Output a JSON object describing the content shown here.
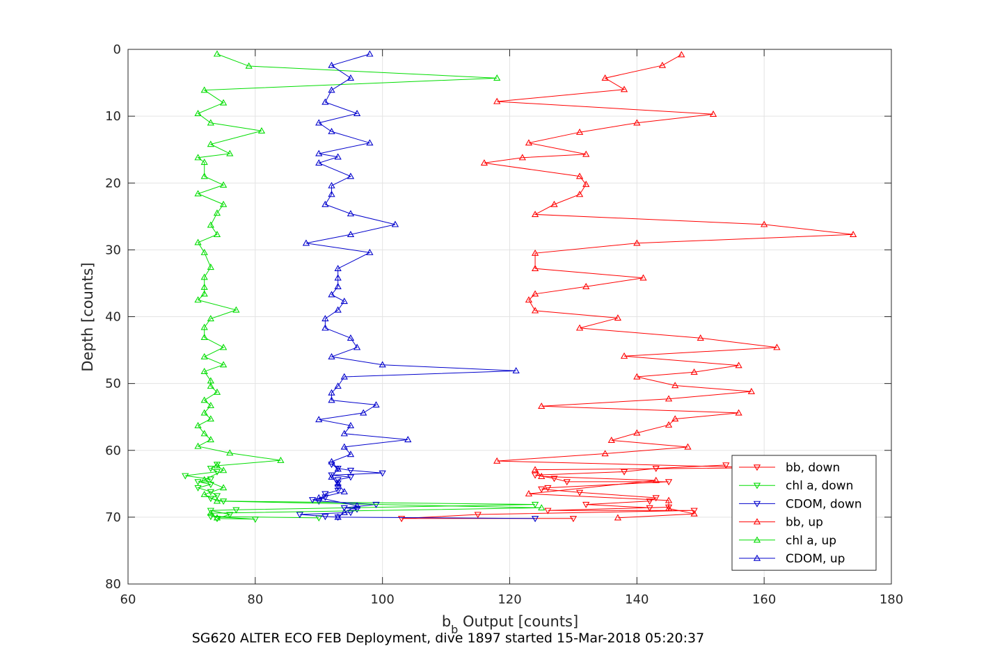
{
  "caption": "SG620 ALTER ECO FEB Deployment, dive 1897 started 15-Mar-2018 05:20:37",
  "chart_data": {
    "type": "line",
    "xlabel": "b_b Output [counts]",
    "xlabel_main": "b",
    "xlabel_sub": "b",
    "xlabel_rest": " Output [counts]",
    "ylabel": "Depth [counts]",
    "xlim": [
      60,
      180
    ],
    "ylim": [
      0,
      80
    ],
    "y_reversed": true,
    "x_ticks": [
      60,
      80,
      100,
      120,
      140,
      160,
      180
    ],
    "y_ticks": [
      0,
      10,
      20,
      30,
      40,
      50,
      60,
      70,
      80
    ],
    "grid": true,
    "legend_position": "bottom-right",
    "series": [
      {
        "name": "bb, down",
        "color": "#ff0000",
        "marker": "triangle-down",
        "points": [
          [
            154,
            62.2
          ],
          [
            143,
            62.7
          ],
          [
            138,
            63.2
          ],
          [
            124,
            63.7
          ],
          [
            127,
            64.2
          ],
          [
            129,
            64.7
          ],
          [
            145,
            64.7
          ],
          [
            126,
            65.6
          ],
          [
            125,
            65.8
          ],
          [
            131,
            66.3
          ],
          [
            143,
            67.1
          ],
          [
            142,
            67.6
          ],
          [
            132,
            68.1
          ],
          [
            142,
            68.6
          ],
          [
            145,
            68.5
          ],
          [
            126,
            69.0
          ],
          [
            149,
            69.0
          ],
          [
            115,
            69.6
          ],
          [
            103,
            70.2
          ],
          [
            130,
            70.2
          ]
        ]
      },
      {
        "name": "chl a, down",
        "color": "#00dd00",
        "marker": "triangle-down",
        "points": [
          [
            74,
            62.1
          ],
          [
            73,
            62.7
          ],
          [
            74,
            63.2
          ],
          [
            69,
            63.8
          ],
          [
            73,
            64.3
          ],
          [
            71,
            64.7
          ],
          [
            73,
            65.1
          ],
          [
            71,
            65.6
          ],
          [
            73,
            66.2
          ],
          [
            74,
            66.8
          ],
          [
            73,
            67.2
          ],
          [
            75,
            67.6
          ],
          [
            124,
            68.1
          ],
          [
            77,
            68.9
          ],
          [
            73,
            69.0
          ],
          [
            76,
            69.6
          ],
          [
            74,
            70.2
          ],
          [
            80,
            70.3
          ],
          [
            73,
            69.9
          ],
          [
            90,
            70.1
          ]
        ]
      },
      {
        "name": "CDOM, down",
        "color": "#0000cc",
        "marker": "triangle-down",
        "points": [
          [
            92,
            62.1
          ],
          [
            93,
            62.7
          ],
          [
            95,
            63.0
          ],
          [
            100,
            63.4
          ],
          [
            92,
            63.7
          ],
          [
            95,
            64.0
          ],
          [
            93,
            64.4
          ],
          [
            93,
            64.9
          ],
          [
            93,
            65.5
          ],
          [
            93,
            66.0
          ],
          [
            91,
            66.5
          ],
          [
            91,
            67.0
          ],
          [
            89,
            67.4
          ],
          [
            90,
            67.6
          ],
          [
            99,
            68.1
          ],
          [
            94,
            68.6
          ],
          [
            96,
            68.8
          ],
          [
            95,
            69.3
          ],
          [
            87,
            69.6
          ],
          [
            91,
            69.9
          ],
          [
            93,
            70.0
          ],
          [
            124,
            70.2
          ]
        ]
      },
      {
        "name": "bb, up",
        "color": "#ff0000",
        "marker": "triangle-up",
        "points": [
          [
            147,
            0.8
          ],
          [
            144,
            2.4
          ],
          [
            135,
            4.3
          ],
          [
            138,
            6.0
          ],
          [
            118,
            7.8
          ],
          [
            152,
            9.7
          ],
          [
            140,
            11.0
          ],
          [
            131,
            12.4
          ],
          [
            123,
            14.0
          ],
          [
            132,
            15.7
          ],
          [
            122,
            16.2
          ],
          [
            116,
            17.0
          ],
          [
            131,
            19.0
          ],
          [
            132,
            20.2
          ],
          [
            131,
            21.7
          ],
          [
            127,
            23.2
          ],
          [
            124,
            24.7
          ],
          [
            160,
            26.2
          ],
          [
            174,
            27.7
          ],
          [
            140,
            29.0
          ],
          [
            124,
            30.5
          ],
          [
            124,
            32.8
          ],
          [
            141,
            34.2
          ],
          [
            132,
            35.5
          ],
          [
            124,
            36.6
          ],
          [
            123,
            37.5
          ],
          [
            124,
            39.1
          ],
          [
            137,
            40.2
          ],
          [
            131,
            41.7
          ],
          [
            150,
            43.2
          ],
          [
            162,
            44.6
          ],
          [
            138,
            45.9
          ],
          [
            156,
            47.3
          ],
          [
            149,
            48.3
          ],
          [
            140,
            49.0
          ],
          [
            146,
            50.3
          ],
          [
            158,
            51.2
          ],
          [
            145,
            52.3
          ],
          [
            125,
            53.4
          ],
          [
            156,
            54.4
          ],
          [
            146,
            55.3
          ],
          [
            145,
            56.2
          ],
          [
            140,
            57.4
          ],
          [
            136,
            58.5
          ],
          [
            148,
            59.5
          ],
          [
            135,
            60.5
          ],
          [
            118,
            61.6
          ],
          [
            160,
            62.6
          ],
          [
            124,
            62.9
          ],
          [
            125,
            63.9
          ],
          [
            143,
            64.5
          ],
          [
            123,
            66.5
          ],
          [
            145,
            67.5
          ],
          [
            145,
            68.7
          ],
          [
            149,
            69.5
          ],
          [
            137,
            70.1
          ]
        ]
      },
      {
        "name": "chl a, up",
        "color": "#00dd00",
        "marker": "triangle-up",
        "points": [
          [
            74,
            0.7
          ],
          [
            79,
            2.5
          ],
          [
            118,
            4.3
          ],
          [
            72,
            6.1
          ],
          [
            75,
            8.0
          ],
          [
            71,
            9.6
          ],
          [
            73,
            11.0
          ],
          [
            81,
            12.2
          ],
          [
            73,
            14.2
          ],
          [
            76,
            15.6
          ],
          [
            71,
            16.2
          ],
          [
            72,
            16.9
          ],
          [
            72,
            19.0
          ],
          [
            75,
            20.3
          ],
          [
            71,
            21.6
          ],
          [
            75,
            23.2
          ],
          [
            74,
            24.5
          ],
          [
            73,
            26.3
          ],
          [
            74,
            27.7
          ],
          [
            71,
            28.9
          ],
          [
            72,
            30.4
          ],
          [
            73,
            32.6
          ],
          [
            72,
            34.1
          ],
          [
            72,
            35.6
          ],
          [
            72,
            36.6
          ],
          [
            71,
            37.5
          ],
          [
            77,
            39.0
          ],
          [
            73,
            40.3
          ],
          [
            72,
            41.6
          ],
          [
            72,
            43.1
          ],
          [
            75,
            44.6
          ],
          [
            72,
            46.0
          ],
          [
            75,
            47.2
          ],
          [
            72,
            48.2
          ],
          [
            73,
            49.6
          ],
          [
            73,
            50.4
          ],
          [
            74,
            51.3
          ],
          [
            72,
            52.5
          ],
          [
            73,
            53.3
          ],
          [
            72,
            54.4
          ],
          [
            73,
            55.3
          ],
          [
            71,
            56.3
          ],
          [
            72,
            57.5
          ],
          [
            73,
            58.4
          ],
          [
            71,
            59.4
          ],
          [
            76,
            60.4
          ],
          [
            84,
            61.5
          ],
          [
            74,
            62.3
          ],
          [
            75,
            63.0
          ],
          [
            72,
            64.4
          ],
          [
            75,
            65.6
          ],
          [
            72,
            66.6
          ],
          [
            74,
            67.6
          ],
          [
            125,
            68.6
          ],
          [
            73,
            69.4
          ],
          [
            74,
            70.1
          ]
        ]
      },
      {
        "name": "CDOM, up",
        "color": "#0000cc",
        "marker": "triangle-up",
        "points": [
          [
            98,
            0.7
          ],
          [
            92,
            2.4
          ],
          [
            95,
            4.3
          ],
          [
            92,
            6.1
          ],
          [
            91,
            7.9
          ],
          [
            96,
            9.6
          ],
          [
            90,
            11.0
          ],
          [
            92,
            12.3
          ],
          [
            98,
            14.0
          ],
          [
            90,
            15.6
          ],
          [
            93,
            16.1
          ],
          [
            90,
            17.0
          ],
          [
            95,
            19.0
          ],
          [
            92,
            20.4
          ],
          [
            92,
            21.7
          ],
          [
            91,
            23.2
          ],
          [
            95,
            24.6
          ],
          [
            102,
            26.2
          ],
          [
            95,
            27.7
          ],
          [
            88,
            29.0
          ],
          [
            98,
            30.4
          ],
          [
            93,
            32.8
          ],
          [
            93,
            34.2
          ],
          [
            93,
            35.5
          ],
          [
            92,
            36.7
          ],
          [
            94,
            37.7
          ],
          [
            93,
            39.0
          ],
          [
            91,
            40.3
          ],
          [
            91,
            41.7
          ],
          [
            95,
            43.2
          ],
          [
            96,
            44.6
          ],
          [
            92,
            46.0
          ],
          [
            100,
            47.2
          ],
          [
            121,
            48.1
          ],
          [
            94,
            49.0
          ],
          [
            93,
            50.4
          ],
          [
            92,
            51.4
          ],
          [
            92,
            52.5
          ],
          [
            99,
            53.2
          ],
          [
            97,
            54.4
          ],
          [
            90,
            55.4
          ],
          [
            95,
            56.3
          ],
          [
            94,
            57.5
          ],
          [
            104,
            58.4
          ],
          [
            94,
            59.5
          ],
          [
            95,
            60.6
          ],
          [
            92,
            61.7
          ],
          [
            93,
            62.8
          ],
          [
            92,
            64.0
          ],
          [
            93,
            65.0
          ],
          [
            94,
            66.2
          ],
          [
            90,
            67.1
          ],
          [
            96,
            68.3
          ],
          [
            94,
            69.3
          ],
          [
            93,
            70.0
          ]
        ]
      }
    ]
  }
}
